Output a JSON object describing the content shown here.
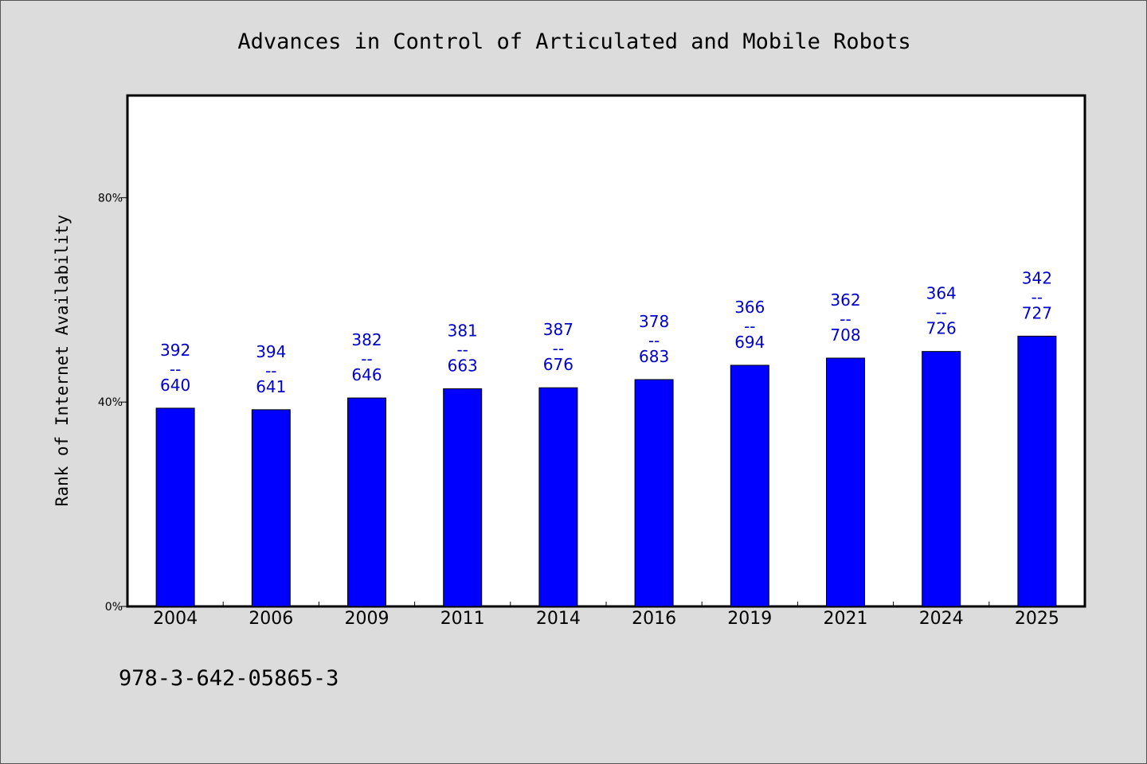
{
  "header": {
    "title": "Advances in Control of Articulated and Mobile Robots"
  },
  "footer": {
    "isbn": "978-3-642-05865-3"
  },
  "colors": {
    "bar": "#0000ff",
    "label": "#0000cc",
    "background": "#dcdcdc",
    "plot_background": "#ffffff"
  },
  "chart_data": {
    "type": "bar",
    "title": "Advances in Control of Articulated and Mobile Robots",
    "xlabel": "",
    "ylabel": "Rank of Internet Availability",
    "ylim": [
      0,
      100
    ],
    "yticks": [
      {
        "value": 0,
        "label": "0%"
      },
      {
        "value": 40,
        "label": "40%"
      },
      {
        "value": 80,
        "label": "80%"
      }
    ],
    "grid": false,
    "legend": "none",
    "categories": [
      "2004",
      "2006",
      "2009",
      "2011",
      "2014",
      "2016",
      "2019",
      "2021",
      "2024",
      "2025"
    ],
    "values": [
      38.8,
      38.5,
      40.8,
      42.6,
      42.8,
      44.4,
      47.2,
      48.6,
      49.9,
      52.9
    ],
    "data_labels": [
      {
        "top": "392",
        "sep": "--",
        "bottom": "640"
      },
      {
        "top": "394",
        "sep": "--",
        "bottom": "641"
      },
      {
        "top": "382",
        "sep": "--",
        "bottom": "646"
      },
      {
        "top": "381",
        "sep": "--",
        "bottom": "663"
      },
      {
        "top": "387",
        "sep": "--",
        "bottom": "676"
      },
      {
        "top": "378",
        "sep": "--",
        "bottom": "683"
      },
      {
        "top": "366",
        "sep": "--",
        "bottom": "694"
      },
      {
        "top": "362",
        "sep": "--",
        "bottom": "708"
      },
      {
        "top": "364",
        "sep": "--",
        "bottom": "726"
      },
      {
        "top": "342",
        "sep": "--",
        "bottom": "727"
      }
    ]
  }
}
